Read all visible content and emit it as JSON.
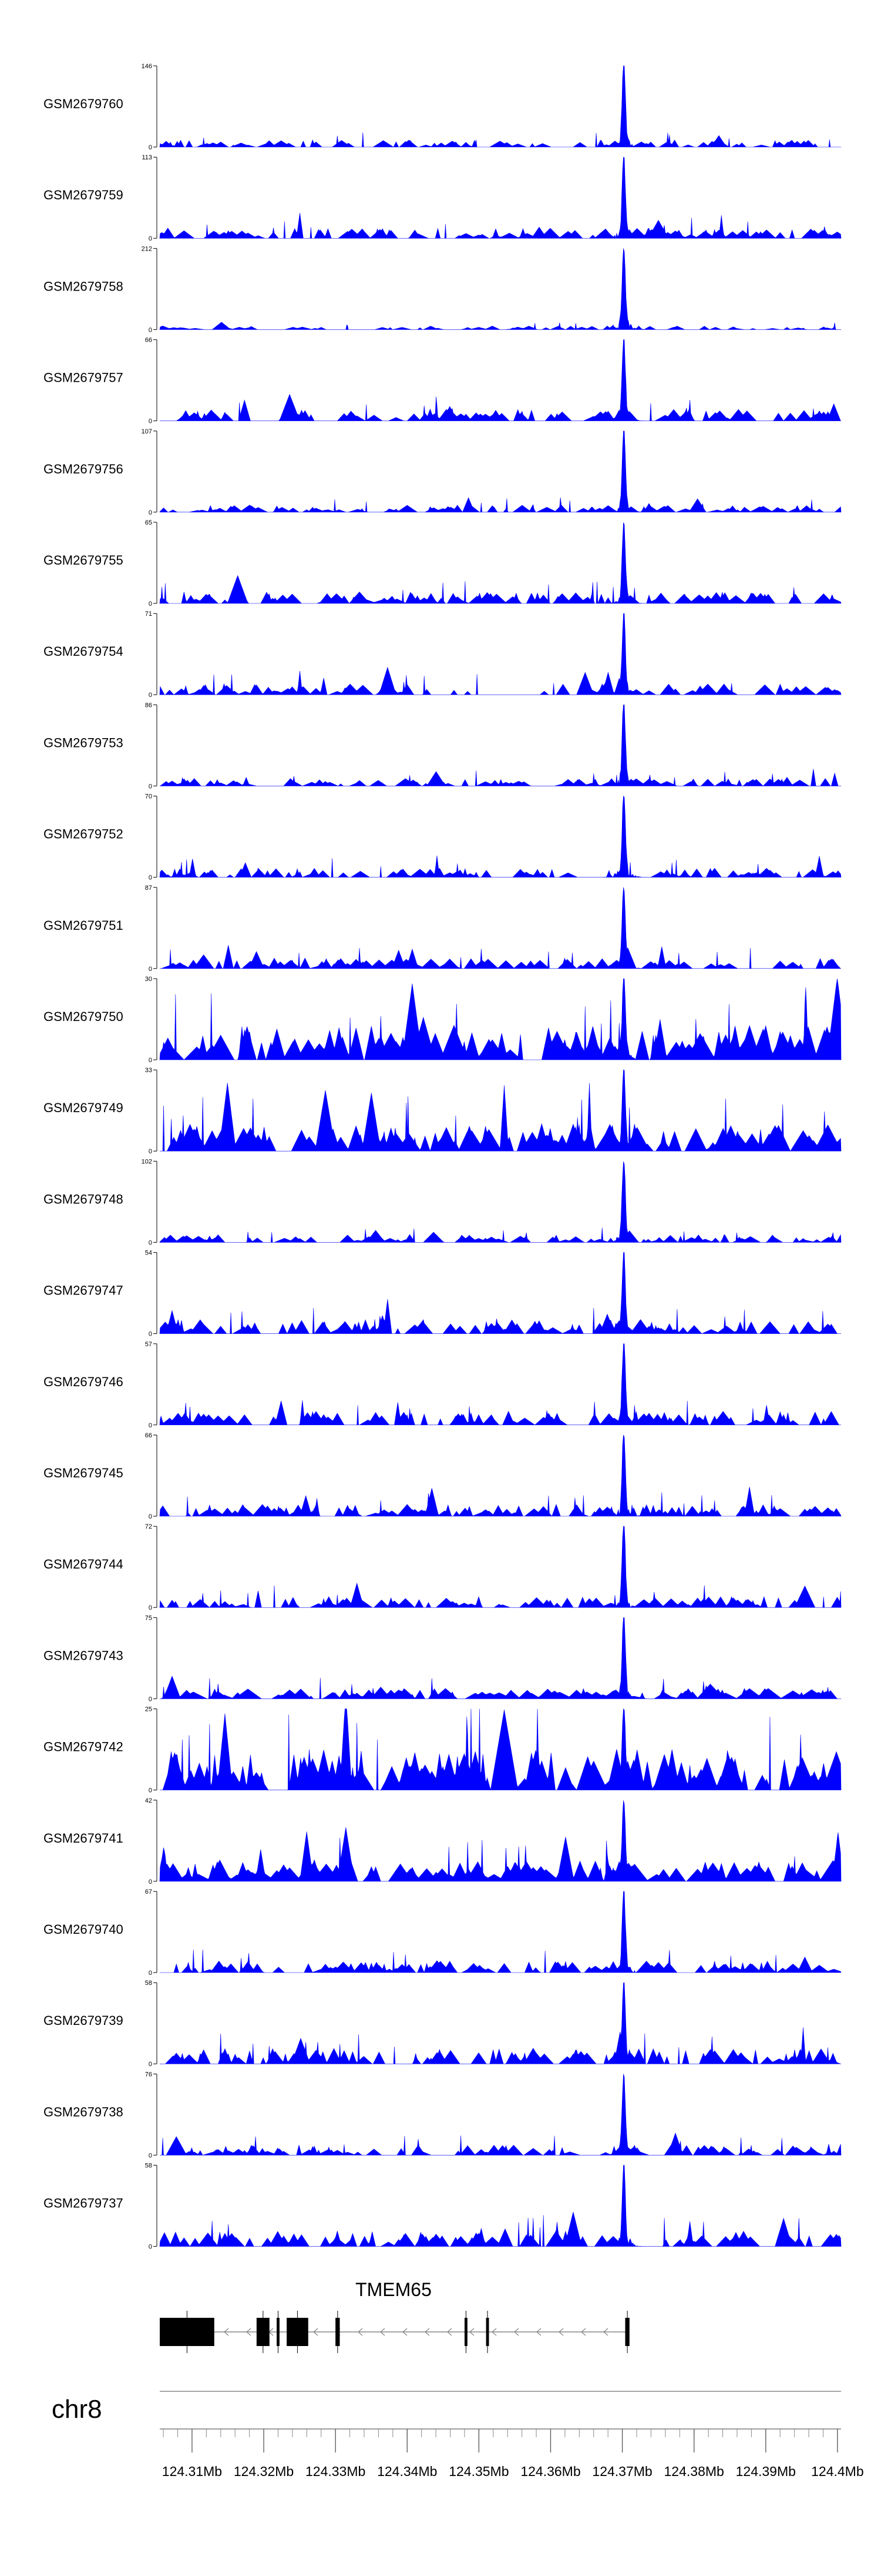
{
  "chart_data": {
    "type": "area",
    "chromosome": "chr8",
    "xlim": [
      124.3055,
      124.4005
    ],
    "x_ticks": [
      "124.31Mb",
      "124.32Mb",
      "124.33Mb",
      "124.34Mb",
      "124.35Mb",
      "124.36Mb",
      "124.37Mb",
      "124.38Mb",
      "124.39Mb",
      "124.4Mb"
    ],
    "x_tick_values": [
      124.31,
      124.32,
      124.33,
      124.34,
      124.35,
      124.36,
      124.37,
      124.38,
      124.39,
      124.4
    ],
    "peak_center": 124.3702,
    "series_color": "#0000ff",
    "series": [
      {
        "name": "GSM2679760",
        "ymax": 146,
        "ymax_label": "146",
        "ymin_label": "0",
        "peak": 146,
        "baseline": 8,
        "density": 0.35
      },
      {
        "name": "GSM2679759",
        "ymax": 113,
        "ymax_label": "113",
        "ymin_label": "0",
        "peak": 113,
        "baseline": 9,
        "density": 0.45
      },
      {
        "name": "GSM2679758",
        "ymax": 212,
        "ymax_label": "212",
        "ymin_label": "0",
        "peak": 212,
        "baseline": 6,
        "density": 0.25
      },
      {
        "name": "GSM2679757",
        "ymax": 66,
        "ymax_label": "66",
        "ymin_label": "0",
        "peak": 66,
        "baseline": 6,
        "density": 0.4
      },
      {
        "name": "GSM2679756",
        "ymax": 107,
        "ymax_label": "107",
        "ymin_label": "0",
        "peak": 107,
        "baseline": 6,
        "density": 0.4
      },
      {
        "name": "GSM2679755",
        "ymax": 65,
        "ymax_label": "65",
        "ymin_label": "0",
        "peak": 65,
        "baseline": 6,
        "density": 0.55
      },
      {
        "name": "GSM2679754",
        "ymax": 71,
        "ymax_label": "71",
        "ymin_label": "0",
        "peak": 71,
        "baseline": 6,
        "density": 0.3
      },
      {
        "name": "GSM2679753",
        "ymax": 86,
        "ymax_label": "86",
        "ymin_label": "0",
        "peak": 86,
        "baseline": 5,
        "density": 0.45
      },
      {
        "name": "GSM2679752",
        "ymax": 70,
        "ymax_label": "70",
        "ymin_label": "0",
        "peak": 70,
        "baseline": 5,
        "density": 0.45
      },
      {
        "name": "GSM2679751",
        "ymax": 87,
        "ymax_label": "87",
        "ymin_label": "0",
        "peak": 87,
        "baseline": 7,
        "density": 0.45
      },
      {
        "name": "GSM2679750",
        "ymax": 30,
        "ymax_label": "30",
        "ymin_label": "0",
        "peak": 30,
        "baseline": 8,
        "density": 0.65
      },
      {
        "name": "GSM2679749",
        "ymax": 33,
        "ymax_label": "33",
        "ymin_label": "0",
        "peak": 33,
        "baseline": 7,
        "density": 0.7
      },
      {
        "name": "GSM2679748",
        "ymax": 102,
        "ymax_label": "102",
        "ymin_label": "0",
        "peak": 102,
        "baseline": 6,
        "density": 0.45
      },
      {
        "name": "GSM2679747",
        "ymax": 54,
        "ymax_label": "54",
        "ymin_label": "0",
        "peak": 54,
        "baseline": 6,
        "density": 0.55
      },
      {
        "name": "GSM2679746",
        "ymax": 57,
        "ymax_label": "57",
        "ymin_label": "0",
        "peak": 57,
        "baseline": 6,
        "density": 0.45
      },
      {
        "name": "GSM2679745",
        "ymax": 66,
        "ymax_label": "66",
        "ymin_label": "0",
        "peak": 66,
        "baseline": 6,
        "density": 0.55
      },
      {
        "name": "GSM2679744",
        "ymax": 72,
        "ymax_label": "72",
        "ymin_label": "0",
        "peak": 72,
        "baseline": 6,
        "density": 0.4
      },
      {
        "name": "GSM2679743",
        "ymax": 75,
        "ymax_label": "75",
        "ymin_label": "0",
        "peak": 75,
        "baseline": 6,
        "density": 0.6
      },
      {
        "name": "GSM2679742",
        "ymax": 25,
        "ymax_label": "25",
        "ymin_label": "0",
        "peak": 25,
        "baseline": 8,
        "density": 0.75
      },
      {
        "name": "GSM2679741",
        "ymax": 42,
        "ymax_label": "42",
        "ymin_label": "0",
        "peak": 42,
        "baseline": 7,
        "density": 0.65
      },
      {
        "name": "GSM2679740",
        "ymax": 67,
        "ymax_label": "67",
        "ymin_label": "0",
        "peak": 67,
        "baseline": 6,
        "density": 0.5
      },
      {
        "name": "GSM2679739",
        "ymax": 58,
        "ymax_label": "58",
        "ymin_label": "0",
        "peak": 58,
        "baseline": 7,
        "density": 0.55
      },
      {
        "name": "GSM2679738",
        "ymax": 76,
        "ymax_label": "76",
        "ymin_label": "0",
        "peak": 76,
        "baseline": 6,
        "density": 0.5
      },
      {
        "name": "GSM2679737",
        "ymax": 58,
        "ymax_label": "58",
        "ymin_label": "0",
        "peak": 58,
        "baseline": 7,
        "density": 0.45
      }
    ],
    "gene": {
      "name": "TMEM65",
      "strand": "-",
      "start": 124.3055,
      "end": 124.371,
      "exons": [
        [
          124.3055,
          124.3131
        ],
        [
          124.319,
          124.3208
        ],
        [
          124.3218,
          124.3222
        ],
        [
          124.3232,
          124.3262
        ],
        [
          124.33,
          124.3306
        ],
        [
          124.348,
          124.3484
        ],
        [
          124.351,
          124.3514
        ],
        [
          124.3704,
          124.371
        ]
      ]
    }
  }
}
